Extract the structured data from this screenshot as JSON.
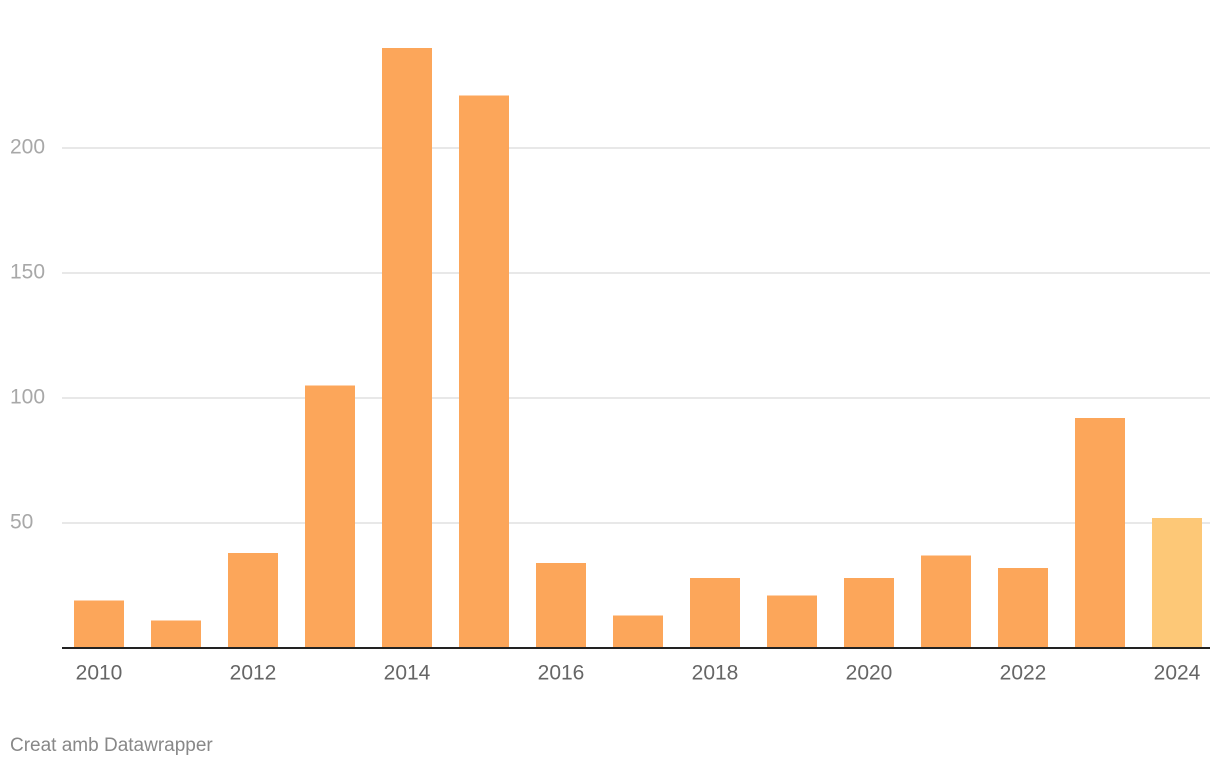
{
  "chart_data": {
    "type": "bar",
    "categories": [
      "2010",
      null,
      "2012",
      null,
      "2014",
      null,
      "2016",
      null,
      "2018",
      null,
      "2020",
      null,
      "2022",
      null,
      "2024"
    ],
    "values": [
      19,
      11,
      38,
      105,
      240,
      221,
      34,
      13,
      28,
      21,
      28,
      37,
      32,
      92,
      52
    ],
    "colors": [
      "#fca65a",
      "#fca65a",
      "#fca65a",
      "#fca65a",
      "#fca65a",
      "#fca65a",
      "#fca65a",
      "#fca65a",
      "#fca65a",
      "#fca65a",
      "#fca65a",
      "#fca65a",
      "#fca65a",
      "#fca65a",
      "#fdc877"
    ],
    "ylim": [
      0,
      240
    ],
    "yticks": [
      50,
      100,
      150,
      200
    ],
    "grid": true,
    "footer": "Creat amb Datawrapper"
  }
}
